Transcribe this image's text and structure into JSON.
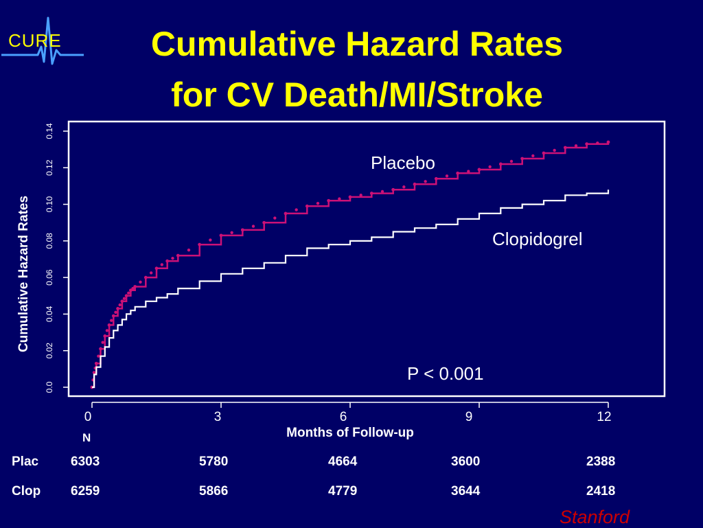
{
  "logo": {
    "text": "CURE"
  },
  "title": {
    "line1": "Cumulative Hazard Rates",
    "line2": "for CV Death/MI/Stroke"
  },
  "colors": {
    "background": "#000066",
    "title": "#FFFF00",
    "placebo": "#CC1177",
    "clopidogrel": "#FFFFFF",
    "frame": "#FFFFFF",
    "stanford": "#CC0000"
  },
  "chart_data": {
    "type": "line",
    "xlabel": "Months of Follow-up",
    "ylabel": "Cumulative Hazard Rates",
    "xlim": [
      0,
      12
    ],
    "ylim": [
      0,
      0.14
    ],
    "x_ticks": [
      "0",
      "3",
      "6",
      "9",
      "12"
    ],
    "y_ticks": [
      "0.0",
      "0.02",
      "0.04",
      "0.06",
      "0.08",
      "0.10",
      "0.12",
      "0.14"
    ],
    "annotation": "P < 0.001",
    "series": [
      {
        "name": "Placebo",
        "x": [
          0,
          0.05,
          0.1,
          0.2,
          0.3,
          0.4,
          0.5,
          0.6,
          0.7,
          0.8,
          0.9,
          1.0,
          1.25,
          1.5,
          1.75,
          2.0,
          2.5,
          3.0,
          3.5,
          4.0,
          4.5,
          5.0,
          5.5,
          6.0,
          6.5,
          7.0,
          7.5,
          8.0,
          8.5,
          9.0,
          9.5,
          10.0,
          10.5,
          11.0,
          11.5,
          12.0
        ],
        "values": [
          0,
          0.008,
          0.013,
          0.021,
          0.028,
          0.034,
          0.039,
          0.043,
          0.047,
          0.05,
          0.053,
          0.055,
          0.06,
          0.065,
          0.069,
          0.072,
          0.078,
          0.083,
          0.086,
          0.09,
          0.095,
          0.099,
          0.102,
          0.104,
          0.106,
          0.108,
          0.111,
          0.114,
          0.117,
          0.119,
          0.122,
          0.125,
          0.128,
          0.131,
          0.133,
          0.134
        ]
      },
      {
        "name": "Clopidogrel",
        "x": [
          0,
          0.05,
          0.1,
          0.2,
          0.3,
          0.4,
          0.5,
          0.6,
          0.7,
          0.8,
          0.9,
          1.0,
          1.25,
          1.5,
          1.75,
          2.0,
          2.5,
          3.0,
          3.5,
          4.0,
          4.5,
          5.0,
          5.5,
          6.0,
          6.5,
          7.0,
          7.5,
          8.0,
          8.5,
          9.0,
          9.5,
          10.0,
          10.5,
          11.0,
          11.5,
          12.0
        ],
        "values": [
          0,
          0.007,
          0.011,
          0.017,
          0.022,
          0.027,
          0.031,
          0.034,
          0.037,
          0.04,
          0.042,
          0.044,
          0.047,
          0.049,
          0.051,
          0.054,
          0.058,
          0.062,
          0.065,
          0.068,
          0.072,
          0.076,
          0.078,
          0.08,
          0.082,
          0.085,
          0.087,
          0.089,
          0.092,
          0.095,
          0.098,
          0.1,
          0.102,
          0.105,
          0.106,
          0.108
        ]
      }
    ]
  },
  "n_table": {
    "header": "N",
    "rows": [
      {
        "label": "Plac",
        "values": [
          "6303",
          "5780",
          "4664",
          "3600",
          "2388"
        ]
      },
      {
        "label": "Clop",
        "values": [
          "6259",
          "5866",
          "4779",
          "3644",
          "2418"
        ]
      }
    ]
  },
  "footer": {
    "stanford": "Stanford"
  }
}
